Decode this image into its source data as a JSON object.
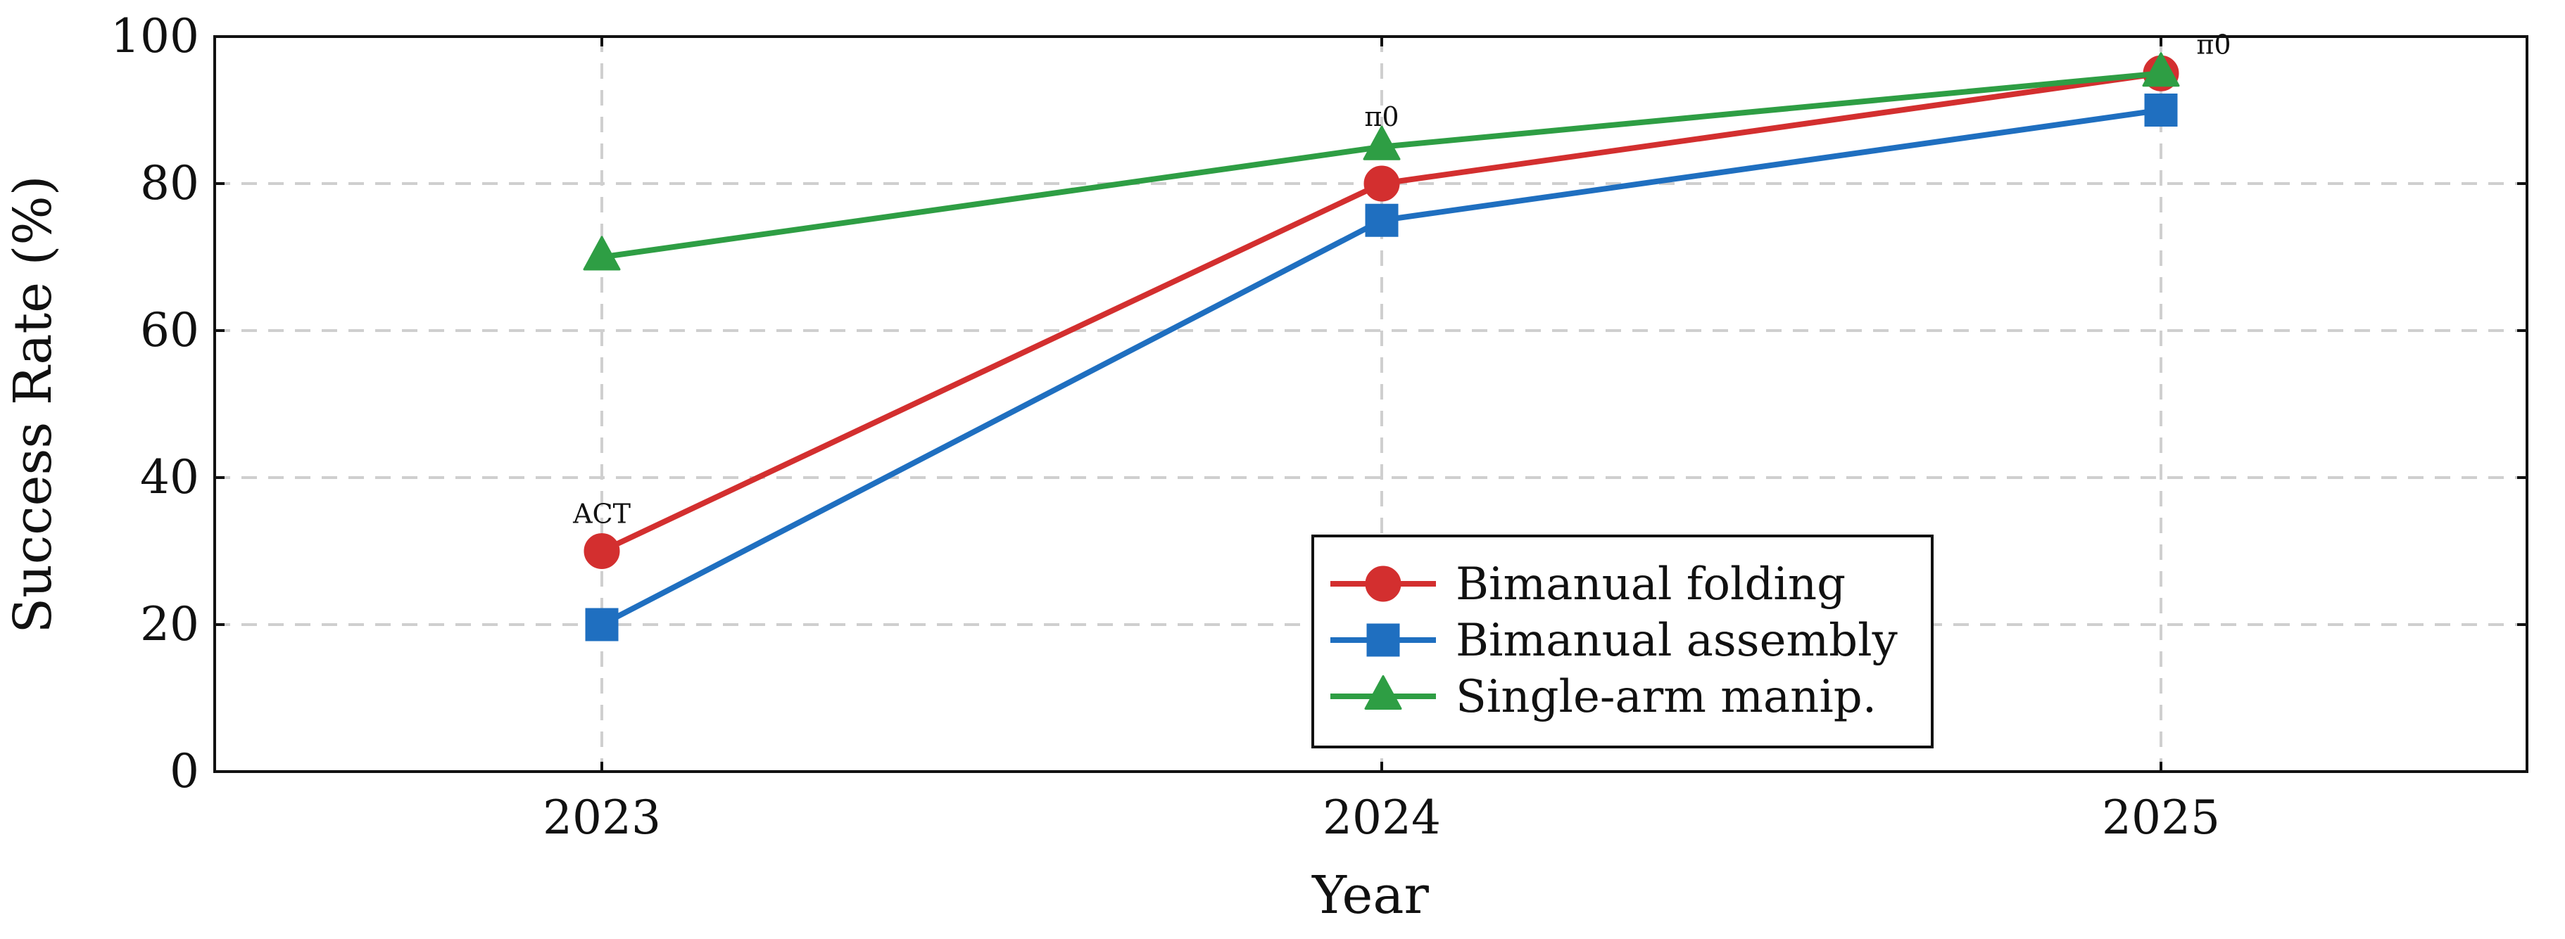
{
  "chart_data": {
    "type": "line",
    "title": "",
    "xlabel": "Year",
    "ylabel": "Success Rate (%)",
    "categories": [
      "2023",
      "2024",
      "2025"
    ],
    "ylim": [
      0,
      100
    ],
    "yticks": [
      "0",
      "20",
      "40",
      "60",
      "80",
      "100"
    ],
    "grid": true,
    "legend_position": "bottom-center",
    "series": [
      {
        "name": "Bimanual folding",
        "values": [
          30,
          80,
          95
        ],
        "color": "#d32f2f",
        "marker": "circle"
      },
      {
        "name": "Bimanual assembly",
        "values": [
          20,
          75,
          90
        ],
        "color": "#1f6fc0",
        "marker": "square"
      },
      {
        "name": "Single-arm manip.",
        "values": [
          70,
          85,
          95
        ],
        "color": "#2e9e44",
        "marker": "triangle"
      }
    ],
    "annotations": [
      {
        "text": "ACT",
        "x": "2023",
        "y": 30
      },
      {
        "text": "π0",
        "x": "2024",
        "y": 85
      },
      {
        "text": "π0",
        "x": "2025",
        "y": 95
      }
    ]
  }
}
